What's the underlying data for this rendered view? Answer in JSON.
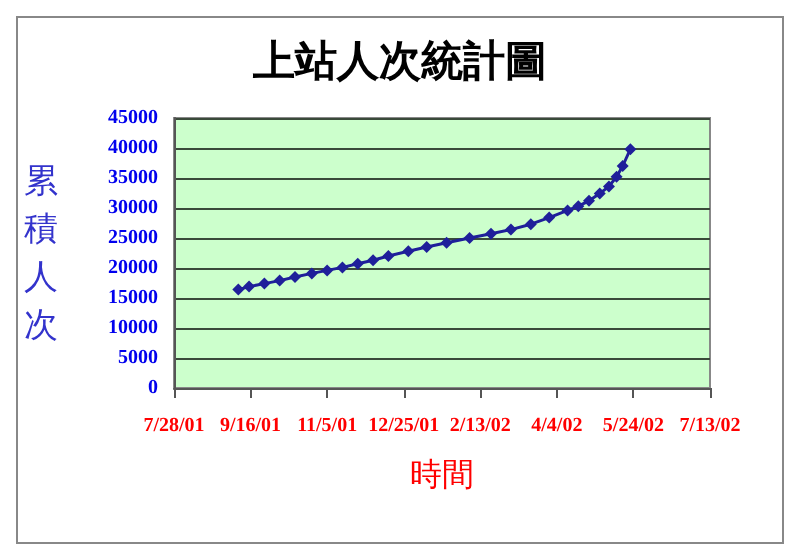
{
  "chart_data": {
    "type": "line",
    "title": "上站人次統計圖",
    "xlabel": "時間",
    "ylabel": "累積人次",
    "x": [
      "2001-09-08",
      "2001-09-15",
      "2001-09-25",
      "2001-10-05",
      "2001-10-15",
      "2001-10-26",
      "2001-11-05",
      "2001-11-15",
      "2001-11-25",
      "2001-12-05",
      "2001-12-15",
      "2001-12-28",
      "2002-01-09",
      "2002-01-22",
      "2002-02-06",
      "2002-02-20",
      "2002-03-05",
      "2002-03-18",
      "2002-03-30",
      "2002-04-11",
      "2002-04-18",
      "2002-04-25",
      "2002-05-02",
      "2002-05-08",
      "2002-05-13",
      "2002-05-17",
      "2002-05-22"
    ],
    "series": [
      {
        "color": "#1f1f9a",
        "values": [
          16400,
          16900,
          17400,
          17900,
          18500,
          19100,
          19600,
          20100,
          20700,
          21300,
          22000,
          22800,
          23500,
          24200,
          25000,
          25700,
          26400,
          27300,
          28400,
          29600,
          30300,
          31200,
          32400,
          33600,
          35200,
          37000,
          39800
        ]
      }
    ],
    "xlim": [
      "2001-07-28",
      "2002-07-13"
    ],
    "xticks": [
      {
        "value": "2001-07-28",
        "label": "7/28/01"
      },
      {
        "value": "2001-09-16",
        "label": "9/16/01"
      },
      {
        "value": "2001-11-05",
        "label": "11/5/01"
      },
      {
        "value": "2001-12-25",
        "label": "12/25/01"
      },
      {
        "value": "2002-02-13",
        "label": "2/13/02"
      },
      {
        "value": "2002-04-04",
        "label": "4/4/02"
      },
      {
        "value": "2002-05-24",
        "label": "5/24/02"
      },
      {
        "value": "2002-07-13",
        "label": "7/13/02"
      }
    ],
    "ylim": [
      0,
      45000
    ],
    "yticks": [
      0,
      5000,
      10000,
      15000,
      20000,
      25000,
      30000,
      35000,
      40000,
      45000
    ],
    "grid": "y",
    "marker": "diamond",
    "line_style": "solid"
  }
}
